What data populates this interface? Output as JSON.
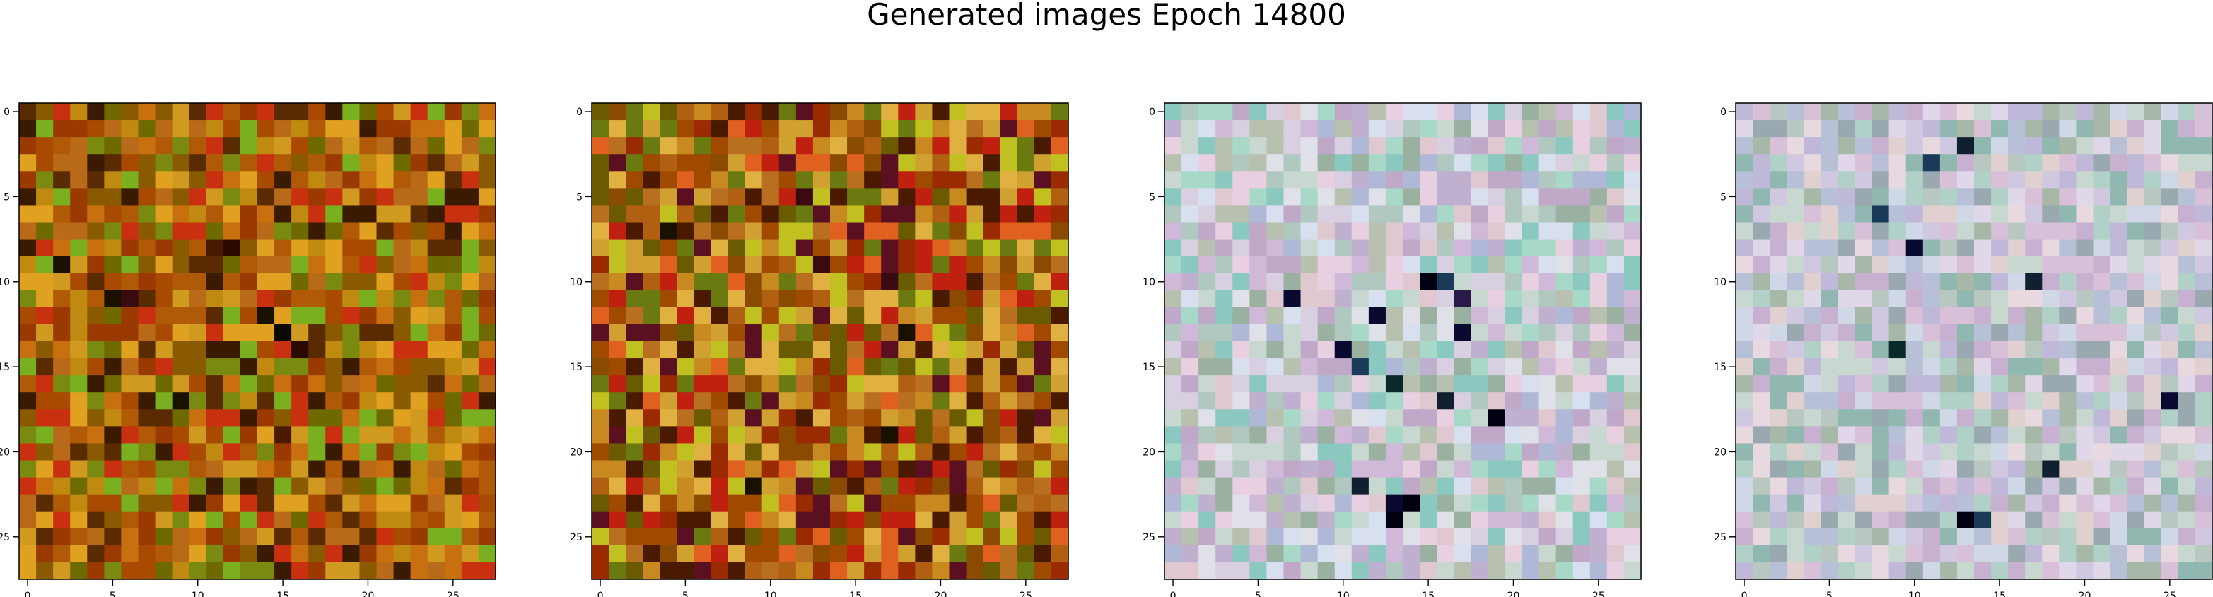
{
  "figure": {
    "title": "Generated images Epoch 14800"
  },
  "chart_data": [
    {
      "type": "heatmap",
      "panel": "image-1",
      "grid": [
        28,
        28
      ],
      "xticks": [
        "0",
        "5",
        "10",
        "15",
        "20",
        "25"
      ],
      "yticks": [
        "0",
        "5",
        "10",
        "15",
        "20",
        "25"
      ],
      "xlim": [
        -0.5,
        27.5
      ],
      "ylim": [
        27.5,
        -0.5
      ],
      "palette": [
        "#b05a08",
        "#a84a00",
        "#c87010",
        "#8a5a00",
        "#6e6a00",
        "#c08a10",
        "#9a3a00",
        "#d09a20",
        "#7a8a10",
        "#b86a18",
        "#5a2a00",
        "#c83010",
        "#3a1a00",
        "#7ab020",
        "#e0a020"
      ],
      "dark_accents": [
        [
          8,
          11
        ],
        [
          8,
          12
        ],
        [
          11,
          5
        ],
        [
          11,
          6
        ],
        [
          12,
          14
        ],
        [
          13,
          15
        ],
        [
          14,
          16
        ],
        [
          17,
          9
        ],
        [
          19,
          15
        ],
        [
          9,
          2
        ]
      ]
    },
    {
      "type": "heatmap",
      "panel": "image-2",
      "grid": [
        28,
        28
      ],
      "xticks": [
        "0",
        "5",
        "10",
        "15",
        "20",
        "25"
      ],
      "yticks": [
        "0",
        "5",
        "10",
        "15",
        "20",
        "25"
      ],
      "xlim": [
        -0.5,
        27.5
      ],
      "ylim": [
        27.5,
        -0.5
      ],
      "palette": [
        "#b06010",
        "#a04a00",
        "#c88a20",
        "#8a4a00",
        "#6a5a00",
        "#d0a030",
        "#9a2a00",
        "#e0b040",
        "#6a7a10",
        "#b87020",
        "#4a1a00",
        "#c02010",
        "#5a1020",
        "#c0c020",
        "#e06020"
      ],
      "dark_accents": [
        [
          9,
          13
        ],
        [
          10,
          17
        ],
        [
          13,
          18
        ],
        [
          15,
          24
        ],
        [
          19,
          17
        ],
        [
          22,
          9
        ],
        [
          5,
          12
        ],
        [
          7,
          4
        ]
      ]
    },
    {
      "type": "heatmap",
      "panel": "image-3",
      "grid": [
        28,
        28
      ],
      "xticks": [
        "0",
        "5",
        "10",
        "15",
        "20",
        "25"
      ],
      "yticks": [
        "0",
        "5",
        "10",
        "15",
        "20",
        "25"
      ],
      "xlim": [
        -0.5,
        27.5
      ],
      "ylim": [
        27.5,
        -0.5
      ],
      "palette": [
        "#d8d0e0",
        "#c8d8d0",
        "#e0e0e8",
        "#b0c8c0",
        "#d0b8d8",
        "#c0b0d0",
        "#a8d8c8",
        "#e8d0e0",
        "#b8c0b0",
        "#d8e0f0",
        "#9ab0a0",
        "#c0a8c8",
        "#8ac8c0",
        "#e0c8d0",
        "#b0b8d8"
      ],
      "dark_accents": [
        [
          10,
          15
        ],
        [
          10,
          16
        ],
        [
          11,
          17
        ],
        [
          13,
          17
        ],
        [
          12,
          12
        ],
        [
          14,
          10
        ],
        [
          23,
          13
        ],
        [
          23,
          14
        ],
        [
          24,
          13
        ],
        [
          22,
          11
        ],
        [
          15,
          11
        ],
        [
          16,
          13
        ],
        [
          17,
          16
        ],
        [
          18,
          19
        ],
        [
          11,
          7
        ]
      ]
    },
    {
      "type": "heatmap",
      "panel": "image-4",
      "grid": [
        28,
        28
      ],
      "xticks": [
        "0",
        "5",
        "10",
        "15",
        "20",
        "25"
      ],
      "yticks": [
        "0",
        "5",
        "10",
        "15",
        "20",
        "25"
      ],
      "xlim": [
        -0.5,
        27.5
      ],
      "ylim": [
        27.5,
        -0.5
      ],
      "palette": [
        "#d0c8e0",
        "#c8d8d0",
        "#e0d8e8",
        "#b8c8c0",
        "#d8c0d8",
        "#c0b8d8",
        "#b0d0c8",
        "#e8d8e0",
        "#a8b8a8",
        "#d0d8e8",
        "#9aa8b0",
        "#c8b0d0",
        "#90b8b0",
        "#e0d0d0",
        "#b8c0d8"
      ],
      "dark_accents": [
        [
          2,
          13
        ],
        [
          3,
          11
        ],
        [
          8,
          10
        ],
        [
          10,
          17
        ],
        [
          17,
          25
        ],
        [
          21,
          18
        ],
        [
          24,
          13
        ],
        [
          24,
          14
        ],
        [
          6,
          8
        ],
        [
          14,
          9
        ]
      ]
    }
  ]
}
